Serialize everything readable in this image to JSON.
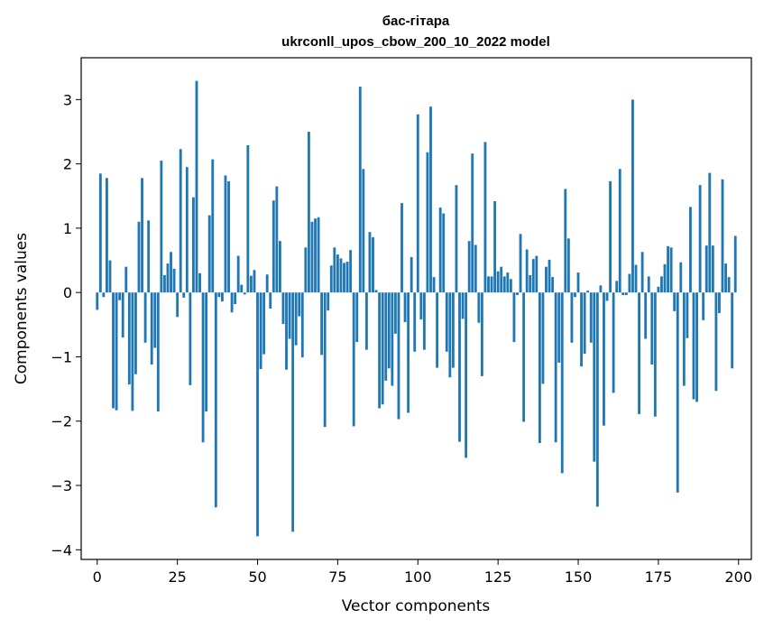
{
  "chart_data": {
    "type": "bar",
    "title": "бас-гітара",
    "subtitle": "ukrconll_upos_cbow_200_10_2022 model",
    "xlabel": "Vector components",
    "ylabel": "Components values",
    "xlim": [
      -5,
      204
    ],
    "ylim": [
      -4.15,
      3.65
    ],
    "x_ticks": [
      0,
      25,
      50,
      75,
      100,
      125,
      150,
      175,
      200
    ],
    "x_tick_labels": [
      "0",
      "25",
      "50",
      "75",
      "100",
      "125",
      "150",
      "175",
      "200"
    ],
    "y_ticks": [
      -4,
      -3,
      -2,
      -1,
      0,
      1,
      2,
      3
    ],
    "y_tick_labels": [
      "−4",
      "−3",
      "−2",
      "−1",
      "0",
      "1",
      "2",
      "3"
    ],
    "bar_color": "#1f77b4",
    "grid": false,
    "x": [
      0,
      1,
      2,
      3,
      4,
      5,
      6,
      7,
      8,
      9,
      10,
      11,
      12,
      13,
      14,
      15,
      16,
      17,
      18,
      19,
      20,
      21,
      22,
      23,
      24,
      25,
      26,
      27,
      28,
      29,
      30,
      31,
      32,
      33,
      34,
      35,
      36,
      37,
      38,
      39,
      40,
      41,
      42,
      43,
      44,
      45,
      46,
      47,
      48,
      49,
      50,
      51,
      52,
      53,
      54,
      55,
      56,
      57,
      58,
      59,
      60,
      61,
      62,
      63,
      64,
      65,
      66,
      67,
      68,
      69,
      70,
      71,
      72,
      73,
      74,
      75,
      76,
      77,
      78,
      79,
      80,
      81,
      82,
      83,
      84,
      85,
      86,
      87,
      88,
      89,
      90,
      91,
      92,
      93,
      94,
      95,
      96,
      97,
      98,
      99,
      100,
      101,
      102,
      103,
      104,
      105,
      106,
      107,
      108,
      109,
      110,
      111,
      112,
      113,
      114,
      115,
      116,
      117,
      118,
      119,
      120,
      121,
      122,
      123,
      124,
      125,
      126,
      127,
      128,
      129,
      130,
      131,
      132,
      133,
      134,
      135,
      136,
      137,
      138,
      139,
      140,
      141,
      142,
      143,
      144,
      145,
      146,
      147,
      148,
      149,
      150,
      151,
      152,
      153,
      154,
      155,
      156,
      157,
      158,
      159,
      160,
      161,
      162,
      163,
      164,
      165,
      166,
      167,
      168,
      169,
      170,
      171,
      172,
      173,
      174,
      175,
      176,
      177,
      178,
      179,
      180,
      181,
      182,
      183,
      184,
      185,
      186,
      187,
      188,
      189,
      190,
      191,
      192,
      193,
      194,
      195,
      196,
      197,
      198,
      199
    ],
    "values": [
      -0.27,
      1.85,
      -0.07,
      1.78,
      0.5,
      -1.8,
      -1.83,
      -0.12,
      -0.7,
      0.4,
      -1.43,
      -1.84,
      -1.27,
      1.1,
      1.78,
      -0.78,
      1.12,
      -1.12,
      -0.86,
      -1.85,
      2.05,
      0.27,
      0.45,
      0.63,
      0.37,
      -0.38,
      2.23,
      -0.08,
      1.95,
      -1.44,
      1.48,
      3.29,
      0.3,
      -2.33,
      -1.85,
      1.2,
      2.07,
      -3.34,
      -0.07,
      -0.14,
      1.82,
      1.73,
      -0.31,
      -0.18,
      0.57,
      0.12,
      -0.03,
      2.29,
      0.26,
      0.35,
      -3.79,
      -1.19,
      -0.96,
      0.28,
      -0.25,
      1.43,
      1.65,
      0.8,
      -0.49,
      -1.2,
      -0.72,
      -3.72,
      -0.82,
      -0.37,
      -1.01,
      0.7,
      2.5,
      1.1,
      1.15,
      1.17,
      -0.97,
      -2.09,
      -0.28,
      0.42,
      0.7,
      0.59,
      0.53,
      0.46,
      0.48,
      0.66,
      -2.08,
      -0.77,
      3.2,
      1.92,
      -0.89,
      0.94,
      0.86,
      0.04,
      -1.8,
      -1.74,
      -1.37,
      -1.18,
      -1.45,
      -0.64,
      -1.97,
      1.39,
      -0.46,
      -1.87,
      0.55,
      -0.92,
      2.77,
      -0.42,
      -0.89,
      2.18,
      2.89,
      0.24,
      -1.17,
      1.32,
      1.23,
      -0.92,
      -1.32,
      -1.17,
      1.67,
      -2.32,
      -0.41,
      -2.57,
      0.8,
      2.16,
      0.74,
      -0.47,
      -1.3,
      2.34,
      0.25,
      0.25,
      1.42,
      0.33,
      0.4,
      0.25,
      0.31,
      0.21,
      -0.77,
      -0.04,
      0.91,
      -2.01,
      0.67,
      0.27,
      0.52,
      0.57,
      -2.34,
      -1.42,
      0.4,
      0.51,
      0.24,
      -2.33,
      -1.09,
      -2.81,
      1.61,
      0.84,
      -0.78,
      -0.07,
      0.31,
      -1.15,
      -0.95,
      0.03,
      -0.78,
      -2.63,
      -3.33,
      0.11,
      -2.07,
      -0.13,
      1.73,
      -1.56,
      0.18,
      1.92,
      -0.04,
      -0.04,
      0.29,
      3.0,
      0.43,
      -1.89,
      0.63,
      -0.72,
      0.25,
      -1.12,
      -1.93,
      0.09,
      0.25,
      0.44,
      0.72,
      0.7,
      -0.29,
      -3.11,
      0.47,
      -1.45,
      -0.71,
      1.33,
      -1.66,
      -1.7,
      1.67,
      -0.43,
      0.73,
      1.86,
      0.73,
      -1.53,
      -0.32,
      1.76,
      0.45,
      0.24,
      -1.18,
      0.88
    ]
  }
}
